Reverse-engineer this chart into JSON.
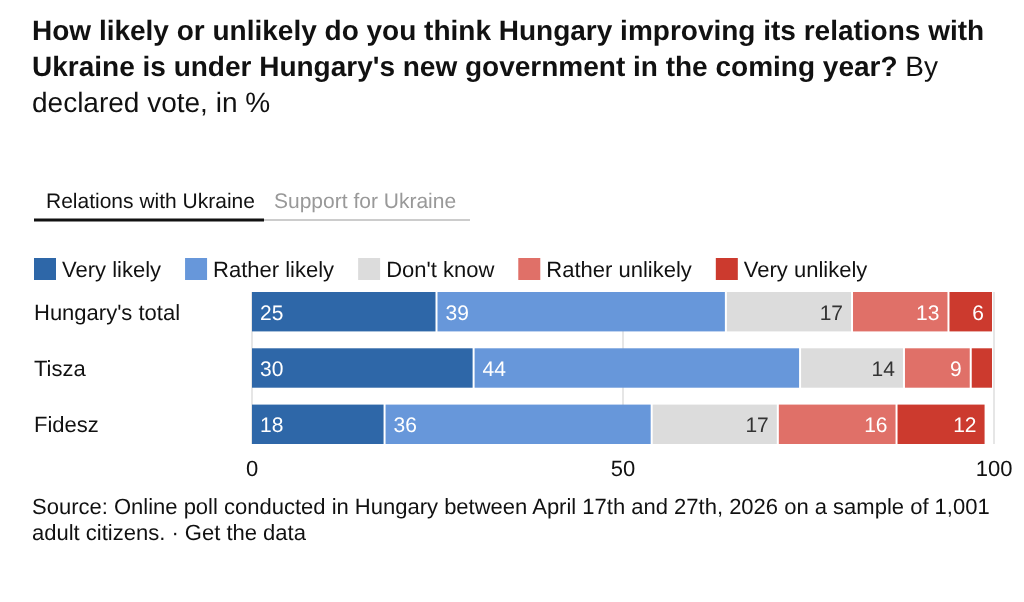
{
  "chart_data": {
    "type": "bar",
    "orientation": "horizontal",
    "stacked": true,
    "title": "How likely or unlikely do you think Hungary improving its relations with Ukraine is under Hungary's new government in the coming year?",
    "subtitle": "By declared vote, in %",
    "categories": [
      "Hungary's total",
      "Tisza",
      "Fidesz"
    ],
    "series": [
      {
        "name": "Very likely",
        "color": "#2e67a8",
        "values": [
          25,
          30,
          18
        ],
        "value_labels": [
          "25",
          "30",
          "18"
        ]
      },
      {
        "name": "Rather likely",
        "color": "#6797da",
        "values": [
          39,
          44,
          36
        ],
        "value_labels": [
          "39",
          "44",
          "36"
        ]
      },
      {
        "name": "Don't know",
        "color": "#dcdcdc",
        "values": [
          17,
          14,
          17
        ],
        "value_labels": [
          "17",
          "14",
          "17"
        ]
      },
      {
        "name": "Rather unlikely",
        "color": "#e07068",
        "values": [
          13,
          9,
          16
        ],
        "value_labels": [
          "13",
          "9",
          "16"
        ]
      },
      {
        "name": "Very unlikely",
        "color": "#cc3a2e",
        "values": [
          6,
          3,
          12
        ],
        "value_labels": [
          "6",
          null,
          "12"
        ]
      }
    ],
    "xlim": [
      0,
      100
    ],
    "xticks": [
      0,
      50,
      100
    ],
    "grid": "x",
    "legend": "top left",
    "annotations": [
      "Relations with Ukraine",
      "Support for Ukraine",
      "Source: Online poll conducted in Hungary between April 17th and 27th, 2026 on a sample of 1,001 adult citizens. · Get the data"
    ]
  }
}
